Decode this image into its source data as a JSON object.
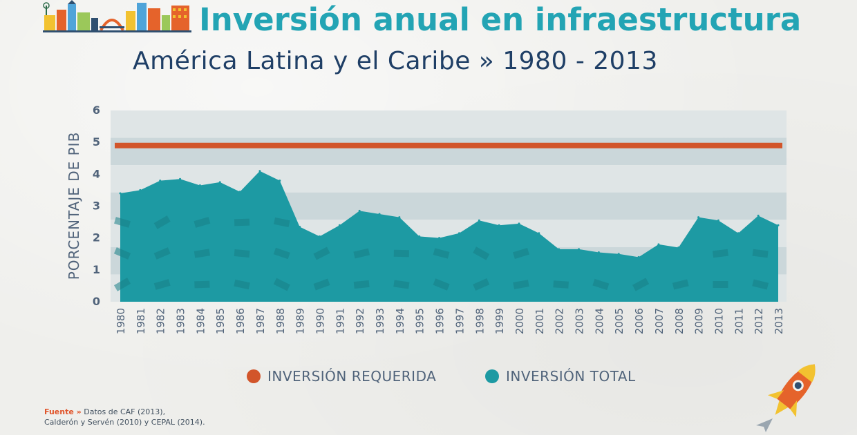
{
  "header": {
    "title": "Inversión anual en infraestructura",
    "subtitle": "América Latina y el Caribe » 1980 - 2013"
  },
  "colors": {
    "required": "#d2552a",
    "total": "#1d9aa3",
    "band_light": "#dfe5e6",
    "band_dark": "#cbd7da",
    "axis_text": "#50637a"
  },
  "icons": [
    "city-skyline-icon",
    "rocket-icon",
    "paper-plane-icon"
  ],
  "source": {
    "label": "Fuente »",
    "text_line1": "Datos de CAF (2013),",
    "text_line2": "Calderón y Servén (2010) y CEPAL (2014)."
  },
  "chart_data": {
    "type": "area",
    "ylabel": "PORCENTAJE DE PIB",
    "xlabel": "",
    "ylim": [
      0,
      6
    ],
    "yticks": [
      0,
      1,
      2,
      3,
      4,
      5,
      6
    ],
    "grid": "horizontal bands",
    "legend_position": "bottom",
    "x": [
      1980,
      1981,
      1982,
      1983,
      1984,
      1985,
      1986,
      1987,
      1988,
      1989,
      1990,
      1991,
      1992,
      1993,
      1994,
      1995,
      1996,
      1997,
      1998,
      1999,
      2000,
      2001,
      2002,
      2003,
      2004,
      2005,
      2006,
      2007,
      2008,
      2009,
      2010,
      2011,
      2012,
      2013
    ],
    "series": [
      {
        "name": "INVERSIÓN REQUERIDA",
        "type": "line",
        "values": [
          4.9,
          4.9,
          4.9,
          4.9,
          4.9,
          4.9,
          4.9,
          4.9,
          4.9,
          4.9,
          4.9,
          4.9,
          4.9,
          4.9,
          4.9,
          4.9,
          4.9,
          4.9,
          4.9,
          4.9,
          4.9,
          4.9,
          4.9,
          4.9,
          4.9,
          4.9,
          4.9,
          4.9,
          4.9,
          4.9,
          4.9,
          4.9,
          4.9,
          4.9
        ]
      },
      {
        "name": "INVERSIÓN TOTAL",
        "type": "area",
        "values": [
          3.4,
          3.5,
          3.8,
          3.85,
          3.65,
          3.75,
          3.45,
          4.1,
          3.8,
          2.35,
          2.05,
          2.4,
          2.85,
          2.75,
          2.65,
          2.05,
          2.0,
          2.15,
          2.55,
          2.4,
          2.45,
          2.15,
          1.65,
          1.65,
          1.55,
          1.5,
          1.4,
          1.8,
          1.7,
          2.65,
          2.55,
          2.15,
          2.7,
          2.4
        ]
      }
    ]
  }
}
